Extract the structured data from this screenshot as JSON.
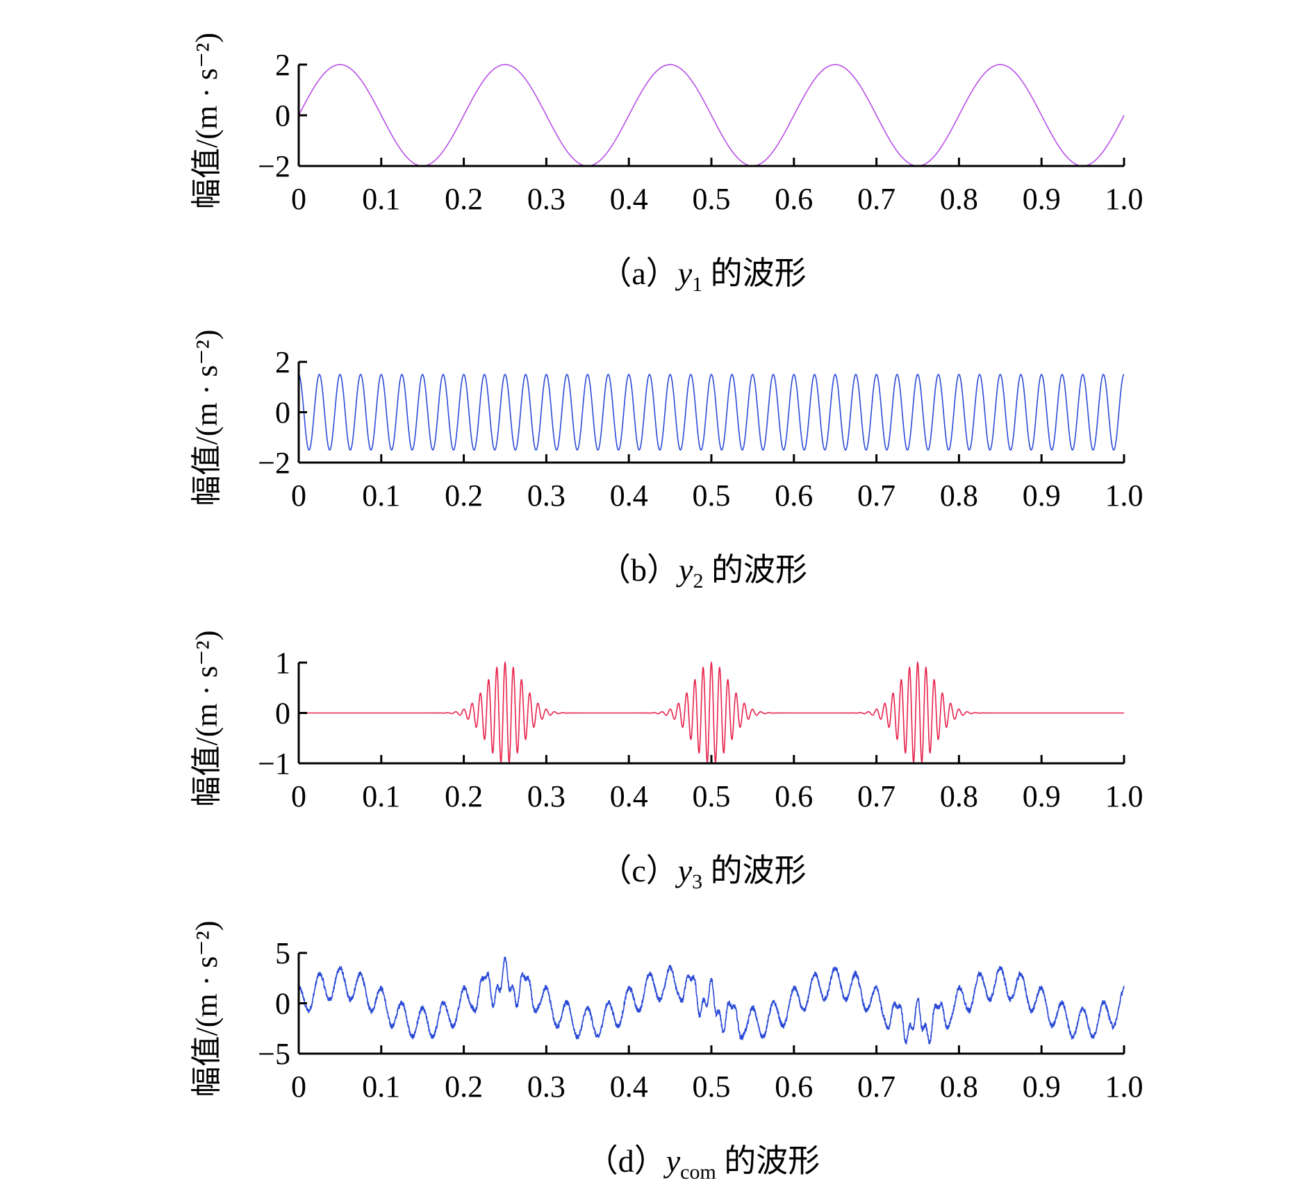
{
  "chart_data": [
    {
      "type": "line",
      "panel": "a",
      "caption": {
        "prefix": "（a）",
        "var": "y",
        "sub": "1",
        "suffix": " 的波形"
      },
      "ylabel": "幅值/(m · s⁻²)",
      "xlim": [
        0,
        1.0
      ],
      "ylim": [
        -2,
        2
      ],
      "xticks": [
        "0",
        "0.1",
        "0.2",
        "0.3",
        "0.4",
        "0.5",
        "0.6",
        "0.7",
        "0.8",
        "0.9",
        "1.0"
      ],
      "yticks": [
        {
          "value": 2,
          "label": "2"
        },
        {
          "value": 0,
          "label": "0"
        },
        {
          "value": -2,
          "label": "−2"
        }
      ],
      "series": [
        {
          "color": "#b84fe6",
          "signal": {
            "kind": "sine",
            "amplitude": 2,
            "frequency_hz": 5,
            "phase": 0
          }
        }
      ]
    },
    {
      "type": "line",
      "panel": "b",
      "caption": {
        "prefix": "（b）",
        "var": "y",
        "sub": "2",
        "suffix": " 的波形"
      },
      "ylabel": "幅值/(m · s⁻²)",
      "xlim": [
        0,
        1.0
      ],
      "ylim": [
        -2,
        2
      ],
      "xticks": [
        "0",
        "0.1",
        "0.2",
        "0.3",
        "0.4",
        "0.5",
        "0.6",
        "0.7",
        "0.8",
        "0.9",
        "1.0"
      ],
      "yticks": [
        {
          "value": 2,
          "label": "2"
        },
        {
          "value": 0,
          "label": "0"
        },
        {
          "value": -2,
          "label": "−2"
        }
      ],
      "series": [
        {
          "color": "#2a4ad6",
          "signal": {
            "kind": "cosine",
            "amplitude": 1.5,
            "frequency_hz": 40,
            "phase": 0
          }
        }
      ]
    },
    {
      "type": "line",
      "panel": "c",
      "caption": {
        "prefix": "（c）",
        "var": "y",
        "sub": "3",
        "suffix": " 的波形"
      },
      "ylabel": "幅值/(m · s⁻²)",
      "xlim": [
        0,
        1.0
      ],
      "ylim": [
        -1,
        1
      ],
      "xticks": [
        "0",
        "0.1",
        "0.2",
        "0.3",
        "0.4",
        "0.5",
        "0.6",
        "0.7",
        "0.8",
        "0.9",
        "1.0"
      ],
      "yticks": [
        {
          "value": 1,
          "label": "1"
        },
        {
          "value": 0,
          "label": "0"
        },
        {
          "value": -1,
          "label": "−1"
        }
      ],
      "series": [
        {
          "color": "#e8204a",
          "signal": {
            "kind": "bursts",
            "amplitude": 1,
            "carrier_hz": 100,
            "centers": [
              0.25,
              0.5,
              0.75
            ],
            "width_s": 0.022
          }
        }
      ]
    },
    {
      "type": "line",
      "panel": "d",
      "caption": {
        "prefix": "（d）",
        "var": "y",
        "sub": "com",
        "suffix": " 的波形"
      },
      "ylabel": "幅值/(m · s⁻²)",
      "xlim": [
        0,
        1.0
      ],
      "ylim": [
        -5,
        5
      ],
      "xticks": [
        "0",
        "0.1",
        "0.2",
        "0.3",
        "0.4",
        "0.5",
        "0.6",
        "0.7",
        "0.8",
        "0.9",
        "1.0"
      ],
      "yticks": [
        {
          "value": 5,
          "label": "5"
        },
        {
          "value": 0,
          "label": "0"
        },
        {
          "value": -5,
          "label": "−5"
        }
      ],
      "series": [
        {
          "color": "#2a4ad6",
          "signal": {
            "kind": "composite",
            "components": [
              "sine 2 5Hz",
              "cosine 1.5 40Hz",
              "bursts 1 100Hz",
              "noise 0.25"
            ]
          }
        }
      ]
    }
  ]
}
